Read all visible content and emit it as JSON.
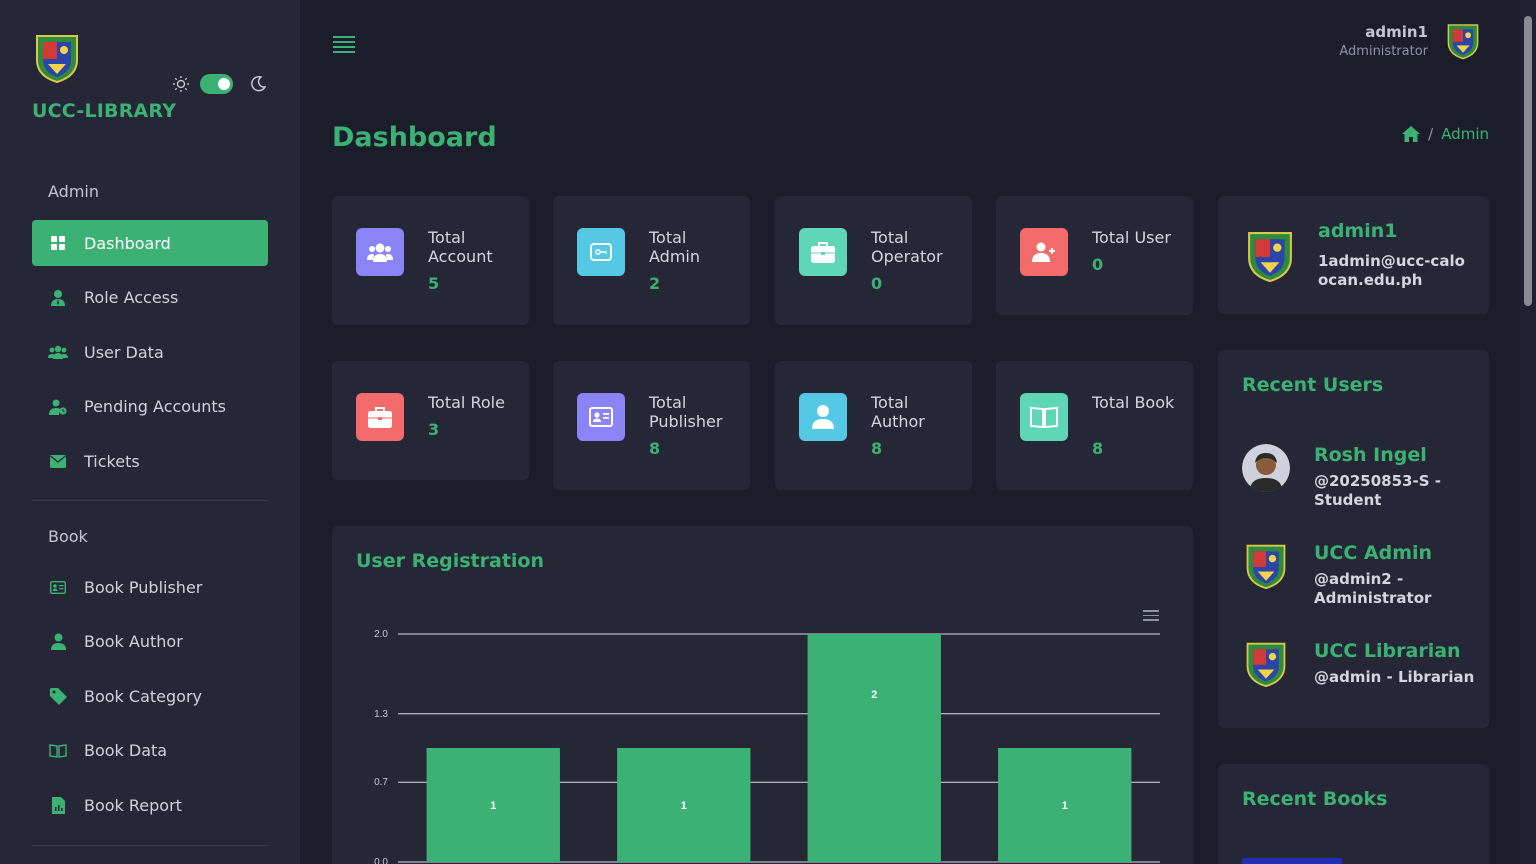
{
  "sidebar": {
    "brand": "UCC-LIBRARY",
    "admin_section": "Admin",
    "admin_items": [
      {
        "label": "Dashboard",
        "icon": "grid-icon",
        "active": true
      },
      {
        "label": "Role Access",
        "icon": "user-tie-icon"
      },
      {
        "label": "User Data",
        "icon": "users-icon"
      },
      {
        "label": "Pending Accounts",
        "icon": "user-clock-icon"
      },
      {
        "label": "Tickets",
        "icon": "envelope-icon"
      }
    ],
    "book_section": "Book",
    "book_items": [
      {
        "label": "Book Publisher",
        "icon": "id-card-icon"
      },
      {
        "label": "Book Author",
        "icon": "user-icon"
      },
      {
        "label": "Book Category",
        "icon": "tag-icon"
      },
      {
        "label": "Book Data",
        "icon": "book-open-icon"
      },
      {
        "label": "Book Report",
        "icon": "file-chart-icon"
      }
    ]
  },
  "header": {
    "user_name": "admin1",
    "user_role": "Administrator"
  },
  "page": {
    "title": "Dashboard",
    "breadcrumb": "Admin"
  },
  "stats": [
    {
      "label": "Total Account",
      "value": "5",
      "color": "#8b84f6"
    },
    {
      "label": "Total Admin",
      "value": "2",
      "color": "#55c8e6"
    },
    {
      "label": "Total Operator",
      "value": "0",
      "color": "#5fd6b6"
    },
    {
      "label": "Total User",
      "value": "0",
      "color": "#f46b6b"
    },
    {
      "label": "Total Role",
      "value": "3",
      "color": "#f46b6b"
    },
    {
      "label": "Total Publisher",
      "value": "8",
      "color": "#8b84f6"
    },
    {
      "label": "Total Author",
      "value": "8",
      "color": "#55c8e6"
    },
    {
      "label": "Total Book",
      "value": "8",
      "color": "#5fd6b6"
    }
  ],
  "profile_card": {
    "name": "admin1",
    "email": "1admin@ucc-caloocan.edu.ph"
  },
  "recent_users": {
    "title": "Recent Users",
    "items": [
      {
        "name": "Rosh Ingel",
        "info": "@20250853-S - Student"
      },
      {
        "name": "UCC Admin",
        "info": "@admin2 - Administrator"
      },
      {
        "name": "UCC Librarian",
        "info": "@admin - Librarian"
      }
    ]
  },
  "recent_books": {
    "title": "Recent Books"
  },
  "chart_title": "User Registration",
  "colors": {
    "accent": "#3bb273",
    "background": "#1c1d2b",
    "card": "#262736"
  },
  "chart_data": {
    "type": "bar",
    "title": "User Registration",
    "categories": [
      "",
      "",
      "",
      ""
    ],
    "values": [
      1,
      1,
      2,
      1
    ],
    "data_labels": [
      "1",
      "1",
      "2",
      "1"
    ],
    "yticks": [
      "0.0",
      "0.7",
      "1.3",
      "2.0"
    ],
    "ylim": [
      0,
      2
    ],
    "grid": true,
    "bar_color": "#3bb273"
  }
}
